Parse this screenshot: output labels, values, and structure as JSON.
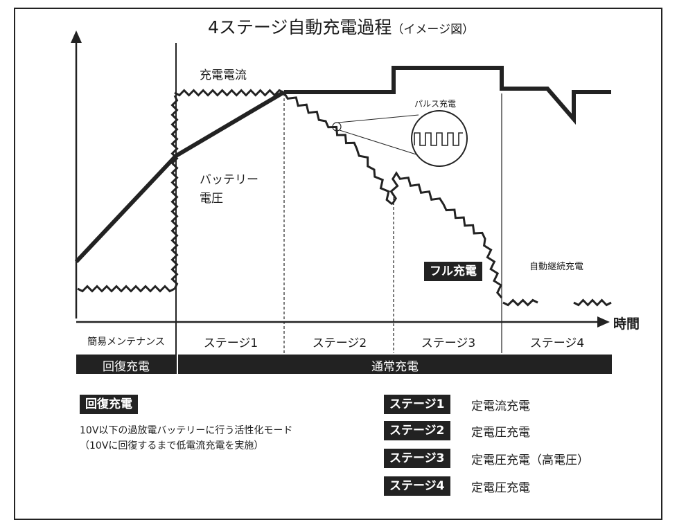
{
  "title": "4ステージ自動充電過程",
  "title_sub": "（イメージ図）",
  "labels": {
    "current": "充電電流",
    "voltage_l1": "バッテリー",
    "voltage_l2": "電圧",
    "pulse": "パルス充電",
    "full": "フル充電",
    "auto": "自動継続充電",
    "time": "時間"
  },
  "stages": [
    "簡易メンテナンス",
    "ステージ1",
    "ステージ2",
    "ステージ3",
    "ステージ4"
  ],
  "bars": {
    "recovery": "回復充電",
    "normal": "通常充電"
  },
  "recovery_note": {
    "heading": "回復充電",
    "line1": "10V以下の過放電バッテリーに行う活性化モード",
    "line2": "（10Vに回復するまで低電流充電を実施）"
  },
  "legend": [
    {
      "stage": "ステージ1",
      "desc": "定電流充電"
    },
    {
      "stage": "ステージ2",
      "desc": "定電圧充電"
    },
    {
      "stage": "ステージ3",
      "desc": "定電圧充電（高電圧）"
    },
    {
      "stage": "ステージ4",
      "desc": "定電圧充電"
    }
  ],
  "colors": {
    "ink": "#222222",
    "background": "#ffffff"
  }
}
